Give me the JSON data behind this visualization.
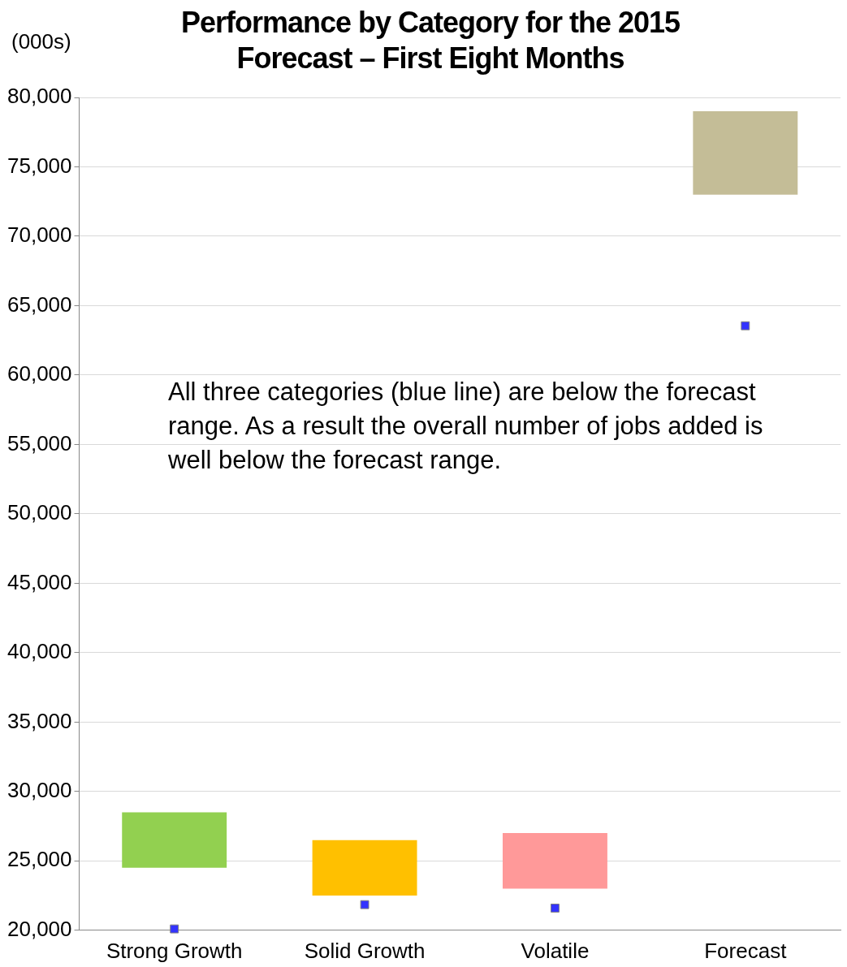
{
  "chart_data": {
    "type": "bar",
    "title": "Performance by Category for the 2015 Forecast – First Eight Months",
    "ylabel": "(000s)",
    "categories": [
      "Strong Growth",
      "Solid Growth",
      "Volatile",
      "Forecast"
    ],
    "series": [
      {
        "type": "bar",
        "values": [
          4000,
          4000,
          4000,
          6000
        ],
        "base": [
          24500,
          22500,
          23000,
          73000
        ],
        "colors": [
          "#92d050",
          "#ffc000",
          "#ff9999",
          "#c4bd97"
        ]
      },
      {
        "type": "scatter",
        "x": [
          "Strong Growth",
          "Solid Growth",
          "Volatile",
          "Forecast"
        ],
        "values": [
          20100,
          21850,
          21600,
          63550
        ],
        "color": "#3333ff",
        "marker": "square"
      }
    ],
    "ylim": [
      20000,
      80000
    ],
    "yticks": [
      {
        "value": 20000,
        "label": "20,000"
      },
      {
        "value": 25000,
        "label": "25,000"
      },
      {
        "value": 30000,
        "label": "30,000"
      },
      {
        "value": 35000,
        "label": "35,000"
      },
      {
        "value": 40000,
        "label": "40,000"
      },
      {
        "value": 45000,
        "label": "45,000"
      },
      {
        "value": 50000,
        "label": "50,000"
      },
      {
        "value": 55000,
        "label": "55,000"
      },
      {
        "value": 60000,
        "label": "60,000"
      },
      {
        "value": 65000,
        "label": "65,000"
      },
      {
        "value": 70000,
        "label": "70,000"
      },
      {
        "value": 75000,
        "label": "75,000"
      },
      {
        "value": 80000,
        "label": "80,000"
      }
    ],
    "grid": "y",
    "legend": false,
    "annotations": [
      "All three categories (blue line) are below the forecast range. As a result the overall number of jobs added is well below the forecast range."
    ]
  }
}
